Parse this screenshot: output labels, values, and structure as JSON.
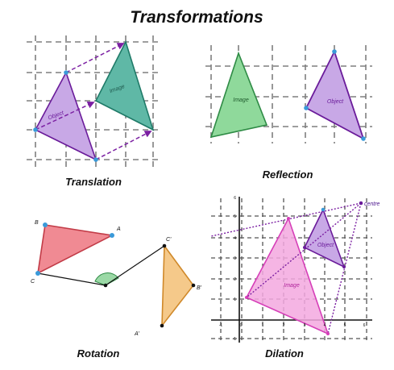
{
  "title": "Transformations",
  "panels": {
    "translation": {
      "caption": "Translation",
      "object_label": "Object",
      "image_label": "Image"
    },
    "reflection": {
      "caption": "Reflection",
      "image_label": "Image",
      "object_label": "Object"
    },
    "rotation": {
      "caption": "Rotation",
      "points": {
        "a": "A",
        "b": "B",
        "c": "C",
        "a_prime": "A'",
        "b_prime": "B'",
        "c_prime": "C'"
      }
    },
    "dilation": {
      "caption": "Dilation",
      "object_label": "Object",
      "image_label": "Image",
      "centre_label": "centre",
      "x_ticks": [
        "-1",
        "0",
        "1",
        "2",
        "3",
        "4",
        "5",
        "6"
      ],
      "y_ticks": [
        "6",
        "5",
        "4",
        "3",
        "2",
        "1",
        "-1"
      ]
    }
  },
  "colors": {
    "object_purple": "#c8a8e6",
    "object_stroke": "#6a1b9a",
    "image_teal": "#5fb8a6",
    "image_stroke": "#1f7a68",
    "reflect_green": "#8fd99b",
    "reflect_stroke": "#2e8b45",
    "rot_red": "#f08a93",
    "rot_orange": "#f5c98a",
    "rot_angle": "#9bd9a6",
    "dil_pink": "#f3a8df",
    "dil_pink_stroke": "#d63fb8",
    "vertex_blue": "#3a9ad9",
    "arrow_purple": "#7b1fa2"
  }
}
